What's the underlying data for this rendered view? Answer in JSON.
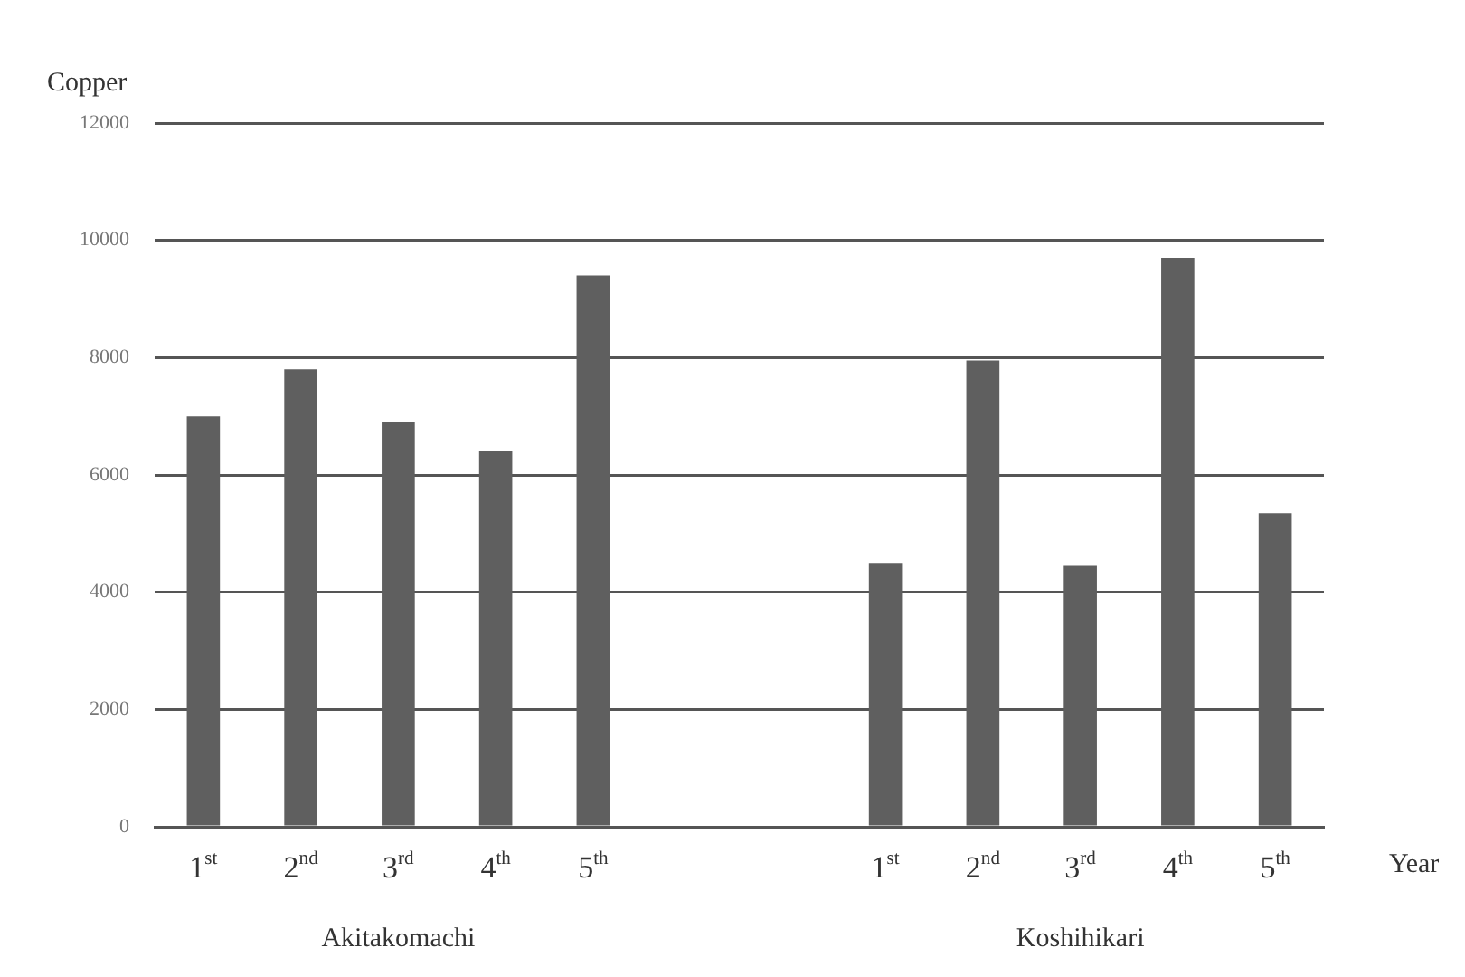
{
  "chart_data": {
    "type": "bar",
    "ylabel": "Copper",
    "xlabel": "Year",
    "categories": [
      "1$^{st}$",
      "2$^{nd}$",
      "3$^{rd}$",
      "4$^{th}$",
      "5$^{th}$",
      null,
      null,
      "1$^{st}$",
      "2$^{nd}$",
      "3$^{rd}$",
      "4$^{th}$",
      "5$^{th}$"
    ],
    "values": [
      7000,
      7800,
      6900,
      6400,
      9400,
      null,
      null,
      4500,
      7950,
      4450,
      9700,
      5350
    ],
    "color": "#5f5f5f",
    "ylim": [
      0,
      12000
    ],
    "yticks": [
      0,
      2000,
      4000,
      6000,
      8000,
      10000,
      12000
    ],
    "grid": "y",
    "annotations": [
      "Akitakomachi",
      "Koshihikari"
    ]
  }
}
